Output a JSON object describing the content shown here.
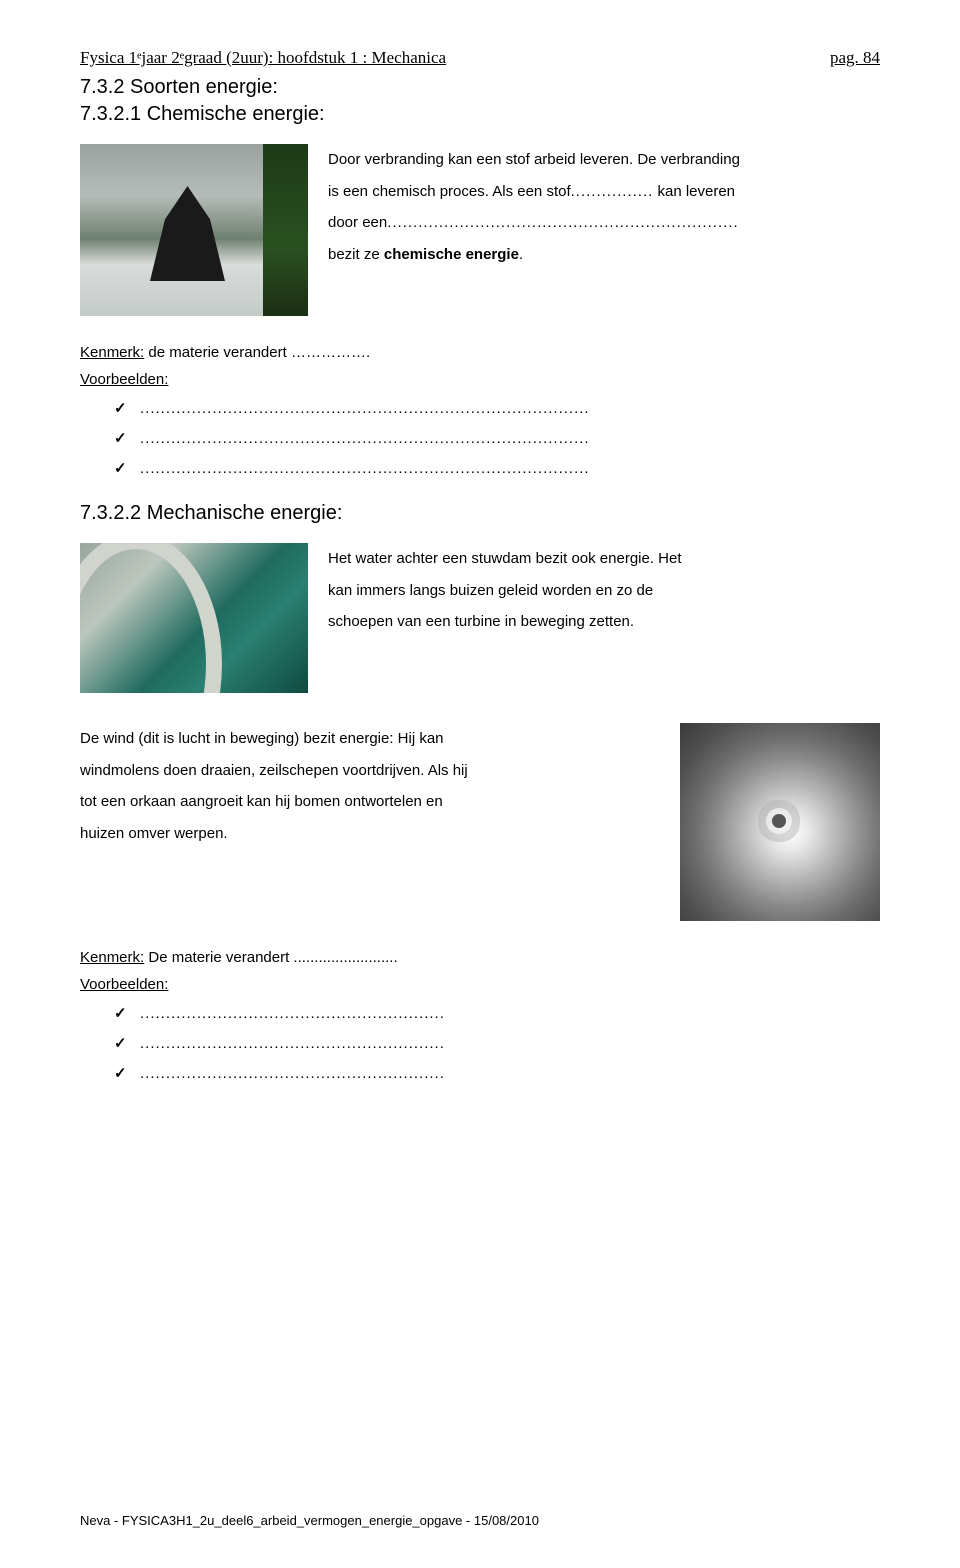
{
  "header": {
    "left": "Fysica 1ᵉjaar 2ᵉgraad (2uur): hoofdstuk 1 : Mechanica",
    "right": "pag. 84"
  },
  "section_title": "7.3.2 Soorten energie:",
  "sub1_title": "7.3.2.1 Chemische energie:",
  "chem": {
    "line1": "Door verbranding kan een stof arbeid leveren. De verbranding",
    "line2a": "is een chemisch proces. Als een stof",
    "line2b_dots": "................",
    "line2c": " kan leveren",
    "line3a": "door een",
    "line3b_dots": "....................................................................",
    "line4a": "bezit ze ",
    "line4b_bold": "chemische energie",
    "line4c": "."
  },
  "kenmerk1_label": "Kenmerk:",
  "kenmerk1_text": " de materie verandert …………….",
  "voorbeelden_label": "Voorbeelden:",
  "check_dots_long": ".......................................................................................",
  "sub2_title": "7.3.2.2 Mechanische energie:",
  "mech": {
    "p1l1": "Het water achter een stuwdam bezit ook energie. Het",
    "p1l2": "kan immers langs buizen geleid worden en zo de",
    "p1l3": "schoepen van een turbine in beweging zetten."
  },
  "wind": {
    "l1": "De wind (dit is lucht in beweging) bezit energie: Hij kan",
    "l2": "windmolens doen draaien, zeilschepen voortdrijven. Als hij",
    "l3": "tot een orkaan aangroeit kan hij bomen ontwortelen en",
    "l4": "huizen omver werpen."
  },
  "kenmerk2_label": "Kenmerk:",
  "kenmerk2_text": " De materie verandert .........................",
  "check_dots_short": "...........................................................",
  "footer": "Neva - FYSICA3H1_2u_deel6_arbeid_vermogen_energie_opgave - 15/08/2010"
}
